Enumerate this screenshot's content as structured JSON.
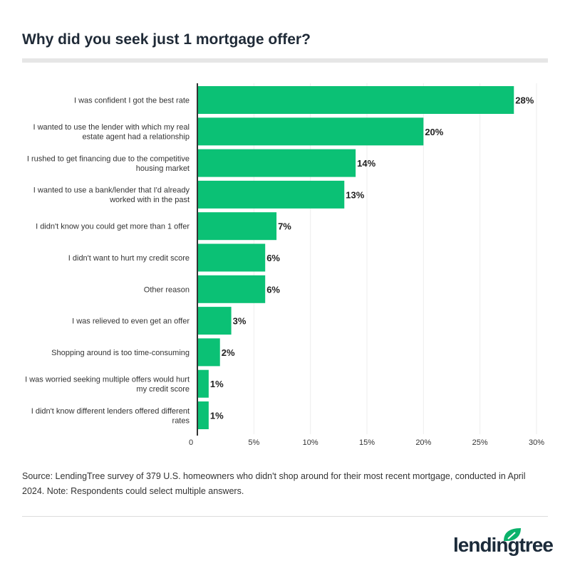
{
  "title": "Why did you seek just 1 mortgage offer?",
  "note": "Source: LendingTree survey of 379 U.S. homeowners who didn't shop around for their most recent mortgage, conducted in April 2024. Note: Respondents could select multiple answers.",
  "logo": "lendingtree",
  "colors": {
    "bar": "#0bc175",
    "text": "#333333",
    "logo_leaf": "#0bb26b"
  },
  "chart_data": {
    "type": "bar",
    "orientation": "horizontal",
    "title": "Why did you seek just 1 mortgage offer?",
    "categories": [
      [
        "I was confident I got the best rate"
      ],
      [
        "I wanted to use the lender with which my real",
        "estate agent had a relationship"
      ],
      [
        "I rushed to get financing due to the competitive",
        "housing market"
      ],
      [
        "I wanted to use a bank/lender that I'd already",
        "worked with in the past"
      ],
      [
        "I didn't know you could get more than 1 offer"
      ],
      [
        "I didn't want to hurt my credit score"
      ],
      [
        "Other reason"
      ],
      [
        "I was relieved to even get an offer"
      ],
      [
        "Shopping around is too time-consuming"
      ],
      [
        "I was worried seeking multiple offers would hurt",
        "my credit score"
      ],
      [
        "I didn't know different lenders offered different",
        "rates"
      ]
    ],
    "values": [
      28,
      20,
      14,
      13,
      7,
      6,
      6,
      3,
      2,
      1,
      1
    ],
    "data_labels": [
      "28%",
      "20%",
      "14%",
      "13%",
      "7%",
      "6%",
      "6%",
      "3%",
      "2%",
      "1%",
      "1%"
    ],
    "xlim": [
      0,
      30
    ],
    "xticks": [
      0,
      5,
      10,
      15,
      20,
      25,
      30
    ],
    "xtick_labels": [
      "0",
      "5%",
      "10%",
      "15%",
      "20%",
      "25%",
      "30%"
    ],
    "grid": true,
    "legend": "none"
  }
}
